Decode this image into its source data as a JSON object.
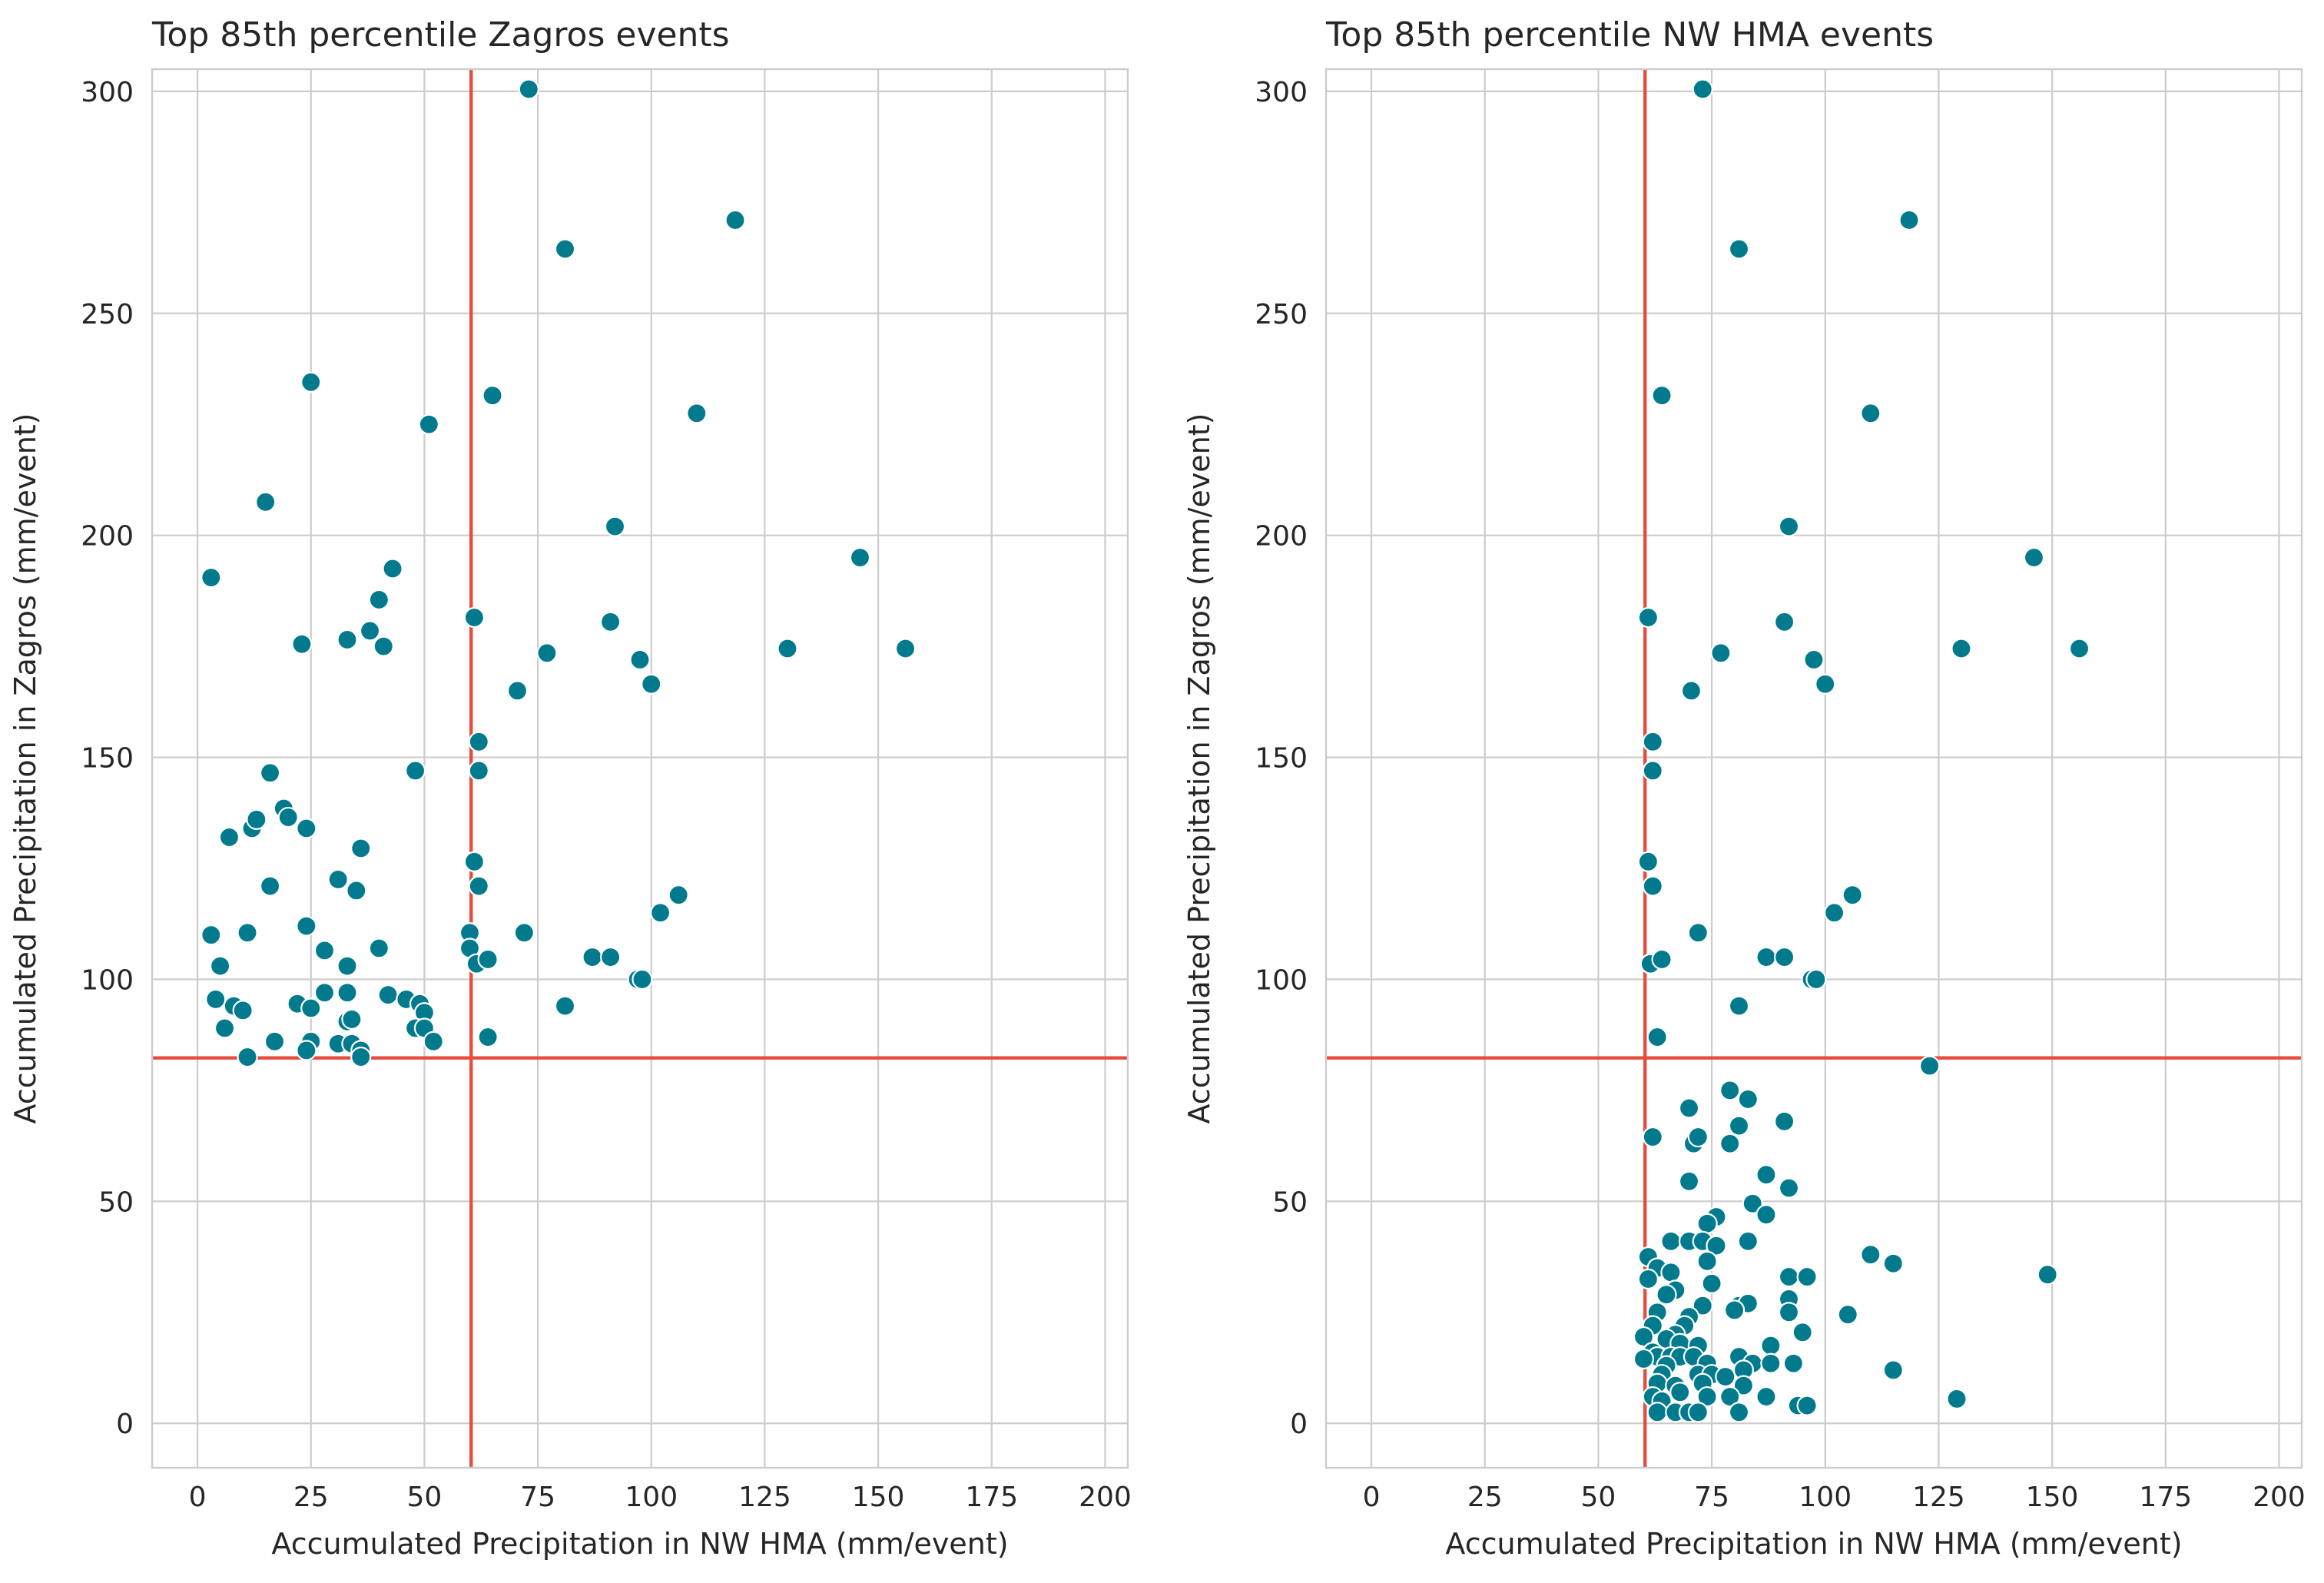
{
  "chart_data": [
    {
      "type": "scatter",
      "title": "Top 85th percentile Zagros events",
      "xlabel": "Accumulated Precipitation in NW HMA (mm/event)",
      "ylabel": "Accumulated Precipitation in Zagros (mm/event)",
      "xlim": [
        -10,
        205
      ],
      "ylim": [
        -10,
        305
      ],
      "xticks": [
        0,
        25,
        50,
        75,
        100,
        125,
        150,
        175,
        200
      ],
      "yticks": [
        0,
        50,
        100,
        150,
        200,
        250,
        300
      ],
      "grid": true,
      "legend": "none",
      "vline": 60.3,
      "hline": 82.3,
      "point_color": "#007a8c",
      "line_color": "#e74c3c",
      "points": [
        [
          73,
          300.5
        ],
        [
          118.5,
          271
        ],
        [
          81,
          264.5
        ],
        [
          25,
          234.5
        ],
        [
          65,
          231.5
        ],
        [
          110,
          227.5
        ],
        [
          51,
          225
        ],
        [
          15,
          207.5
        ],
        [
          92,
          202
        ],
        [
          3,
          190.5
        ],
        [
          146,
          195
        ],
        [
          43,
          192.5
        ],
        [
          40,
          185.5
        ],
        [
          61,
          181.5
        ],
        [
          91,
          180.5
        ],
        [
          38,
          178.5
        ],
        [
          33,
          176.5
        ],
        [
          23,
          175.5
        ],
        [
          41,
          175
        ],
        [
          130,
          174.5
        ],
        [
          156,
          174.5
        ],
        [
          77,
          173.5
        ],
        [
          97.5,
          172
        ],
        [
          100,
          166.5
        ],
        [
          70.5,
          165
        ],
        [
          62,
          153.5
        ],
        [
          16,
          146.5
        ],
        [
          48,
          147
        ],
        [
          62,
          147
        ],
        [
          12,
          134
        ],
        [
          13,
          136
        ],
        [
          19,
          138.5
        ],
        [
          20,
          136.5
        ],
        [
          24,
          134
        ],
        [
          7,
          132
        ],
        [
          36,
          129.5
        ],
        [
          61,
          126.5
        ],
        [
          16,
          121
        ],
        [
          31,
          122.5
        ],
        [
          35,
          120
        ],
        [
          62,
          121
        ],
        [
          106,
          119
        ],
        [
          102,
          115
        ],
        [
          24,
          112
        ],
        [
          3,
          110
        ],
        [
          11,
          110.5
        ],
        [
          60,
          110.5
        ],
        [
          72,
          110.5
        ],
        [
          28,
          106.5
        ],
        [
          40,
          107
        ],
        [
          60,
          107
        ],
        [
          87,
          105
        ],
        [
          91,
          105
        ],
        [
          5,
          103
        ],
        [
          33,
          103
        ],
        [
          61.5,
          103.5
        ],
        [
          64,
          104.5
        ],
        [
          97,
          100
        ],
        [
          98,
          100
        ],
        [
          4,
          95.5
        ],
        [
          28,
          97
        ],
        [
          33,
          97
        ],
        [
          42,
          96.5
        ],
        [
          46,
          95.5
        ],
        [
          22,
          94.5
        ],
        [
          8,
          94
        ],
        [
          10,
          93
        ],
        [
          25,
          93.5
        ],
        [
          49,
          94.5
        ],
        [
          50,
          92.5
        ],
        [
          81,
          94
        ],
        [
          33,
          90.5
        ],
        [
          34,
          91
        ],
        [
          6,
          89
        ],
        [
          48,
          89
        ],
        [
          50,
          89
        ],
        [
          17,
          86
        ],
        [
          25,
          86
        ],
        [
          31,
          85.5
        ],
        [
          24,
          84
        ],
        [
          34,
          85.5
        ],
        [
          36,
          84
        ],
        [
          52,
          86
        ],
        [
          64,
          87
        ],
        [
          11,
          82.5
        ],
        [
          36,
          82.5
        ]
      ]
    },
    {
      "type": "scatter",
      "title": "Top 85th percentile NW HMA events",
      "xlabel": "Accumulated Precipitation in NW HMA (mm/event)",
      "ylabel": "Accumulated Precipitation in Zagros (mm/event)",
      "xlim": [
        -10,
        205
      ],
      "ylim": [
        -10,
        305
      ],
      "xticks": [
        0,
        25,
        50,
        75,
        100,
        125,
        150,
        175,
        200
      ],
      "yticks": [
        0,
        50,
        100,
        150,
        200,
        250,
        300
      ],
      "grid": true,
      "legend": "none",
      "vline": 60.3,
      "hline": 82.3,
      "point_color": "#007a8c",
      "line_color": "#e74c3c",
      "points": [
        [
          73,
          300.5
        ],
        [
          118.5,
          271
        ],
        [
          81,
          264.5
        ],
        [
          64,
          231.5
        ],
        [
          110,
          227.5
        ],
        [
          92,
          202
        ],
        [
          61,
          181.5
        ],
        [
          91,
          180.5
        ],
        [
          146,
          195
        ],
        [
          77,
          173.5
        ],
        [
          130,
          174.5
        ],
        [
          156,
          174.5
        ],
        [
          97.5,
          172
        ],
        [
          100,
          166.5
        ],
        [
          70.5,
          165
        ],
        [
          62,
          153.5
        ],
        [
          62,
          147
        ],
        [
          61,
          126.5
        ],
        [
          62,
          121
        ],
        [
          106,
          119
        ],
        [
          102,
          115
        ],
        [
          72,
          110.5
        ],
        [
          61.5,
          103.5
        ],
        [
          64,
          104.5
        ],
        [
          87,
          105
        ],
        [
          91,
          105
        ],
        [
          97,
          100
        ],
        [
          98,
          100
        ],
        [
          63,
          87
        ],
        [
          81,
          94
        ],
        [
          123,
          80.5
        ],
        [
          79,
          75
        ],
        [
          83,
          73
        ],
        [
          70,
          71
        ],
        [
          81,
          67
        ],
        [
          91,
          68
        ],
        [
          62,
          64.5
        ],
        [
          71,
          63
        ],
        [
          72,
          64.5
        ],
        [
          79,
          63
        ],
        [
          70,
          54.5
        ],
        [
          87,
          56
        ],
        [
          92,
          53
        ],
        [
          84,
          49.5
        ],
        [
          87,
          47
        ],
        [
          76,
          46.5
        ],
        [
          74,
          45
        ],
        [
          66,
          41
        ],
        [
          70,
          41
        ],
        [
          73,
          41
        ],
        [
          76,
          40
        ],
        [
          83,
          41
        ],
        [
          110,
          38
        ],
        [
          115,
          36
        ],
        [
          149,
          33.5
        ],
        [
          61,
          37.5
        ],
        [
          63,
          35
        ],
        [
          66,
          34
        ],
        [
          74,
          36.5
        ],
        [
          61,
          32.5
        ],
        [
          92,
          33
        ],
        [
          96,
          33
        ],
        [
          75,
          31.5
        ],
        [
          67,
          30
        ],
        [
          65,
          29
        ],
        [
          92,
          28
        ],
        [
          81,
          26.5
        ],
        [
          83,
          27
        ],
        [
          73,
          26.5
        ],
        [
          63,
          25
        ],
        [
          70,
          24
        ],
        [
          80,
          25.5
        ],
        [
          92,
          25
        ],
        [
          105,
          24.5
        ],
        [
          62,
          22
        ],
        [
          69,
          22
        ],
        [
          95,
          20.5
        ],
        [
          67,
          20
        ],
        [
          60,
          19.5
        ],
        [
          65,
          19
        ],
        [
          68,
          18
        ],
        [
          72,
          17.5
        ],
        [
          88,
          17.5
        ],
        [
          62,
          16
        ],
        [
          63,
          15
        ],
        [
          66,
          15
        ],
        [
          68,
          15
        ],
        [
          71,
          15
        ],
        [
          74,
          13.5
        ],
        [
          81,
          15
        ],
        [
          84,
          13.5
        ],
        [
          88,
          13.5
        ],
        [
          93,
          13.5
        ],
        [
          60,
          14.5
        ],
        [
          65,
          13
        ],
        [
          64,
          11
        ],
        [
          72,
          11
        ],
        [
          75,
          11
        ],
        [
          78,
          10.5
        ],
        [
          82,
          12
        ],
        [
          115,
          12
        ],
        [
          63,
          9
        ],
        [
          67,
          8.5
        ],
        [
          73,
          9
        ],
        [
          82,
          8.5
        ],
        [
          62,
          6
        ],
        [
          64,
          5
        ],
        [
          68,
          7
        ],
        [
          74,
          6
        ],
        [
          79,
          6
        ],
        [
          87,
          6
        ],
        [
          129,
          5.5
        ],
        [
          63,
          2.5
        ],
        [
          67,
          2.5
        ],
        [
          70,
          2.5
        ],
        [
          72,
          2.5
        ],
        [
          81,
          2.5
        ],
        [
          94,
          4
        ],
        [
          96,
          4
        ]
      ]
    }
  ]
}
